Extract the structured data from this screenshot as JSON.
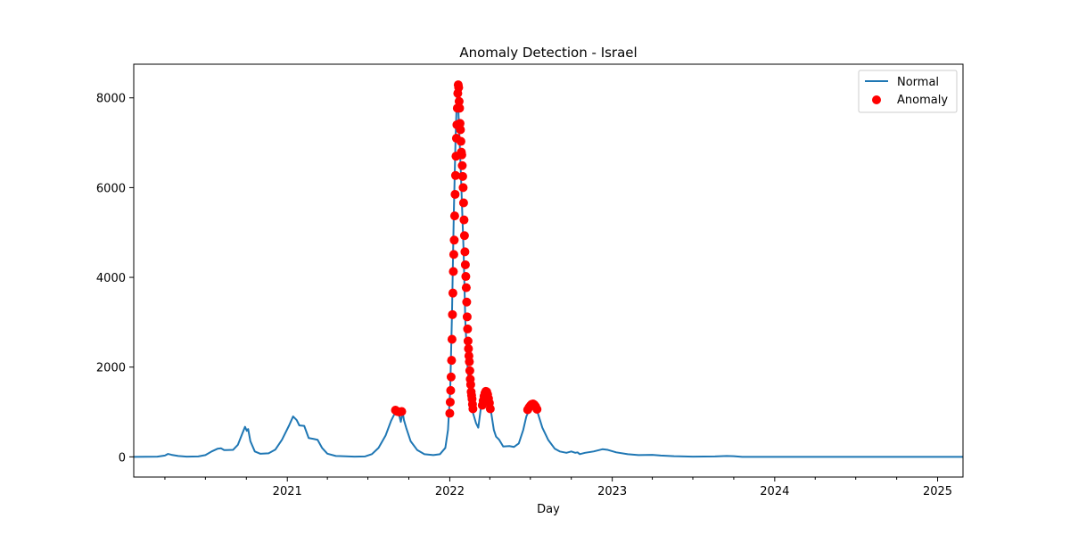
{
  "chart_data": {
    "type": "line",
    "title": "Anomaly Detection - Israel",
    "xlabel": "Day",
    "ylabel": "",
    "xlim": [
      "2020-01-22",
      "2025-02-27"
    ],
    "ylim": [
      -450,
      8750
    ],
    "x_ticks": [
      "2021-01-01",
      "2022-01-01",
      "2023-01-01",
      "2024-01-01",
      "2025-01-01"
    ],
    "x_tick_labels": [
      "2021",
      "2022",
      "2023",
      "2024",
      "2025"
    ],
    "y_ticks": [
      0,
      2000,
      4000,
      6000,
      8000
    ],
    "y_tick_labels": [
      "0",
      "2000",
      "4000",
      "6000",
      "8000"
    ],
    "grid": false,
    "legend": {
      "position": "top-right",
      "entries": [
        "Normal",
        "Anomaly"
      ]
    },
    "colors": {
      "normal": "#1f77b4",
      "anomaly": "#ff0000"
    },
    "series": [
      {
        "name": "Normal",
        "type": "line",
        "points": [
          [
            "2020-01-22",
            0
          ],
          [
            "2020-03-15",
            5
          ],
          [
            "2020-04-01",
            30
          ],
          [
            "2020-04-08",
            65
          ],
          [
            "2020-04-16",
            45
          ],
          [
            "2020-05-01",
            20
          ],
          [
            "2020-05-20",
            5
          ],
          [
            "2020-06-15",
            10
          ],
          [
            "2020-07-01",
            40
          ],
          [
            "2020-07-15",
            120
          ],
          [
            "2020-07-28",
            180
          ],
          [
            "2020-08-05",
            190
          ],
          [
            "2020-08-12",
            150
          ],
          [
            "2020-09-01",
            155
          ],
          [
            "2020-09-12",
            270
          ],
          [
            "2020-09-22",
            520
          ],
          [
            "2020-09-28",
            670
          ],
          [
            "2020-10-02",
            580
          ],
          [
            "2020-10-05",
            620
          ],
          [
            "2020-10-10",
            350
          ],
          [
            "2020-10-20",
            120
          ],
          [
            "2020-11-01",
            70
          ],
          [
            "2020-11-20",
            80
          ],
          [
            "2020-12-05",
            160
          ],
          [
            "2020-12-20",
            380
          ],
          [
            "2021-01-05",
            700
          ],
          [
            "2021-01-14",
            900
          ],
          [
            "2021-01-22",
            820
          ],
          [
            "2021-01-28",
            700
          ],
          [
            "2021-02-08",
            690
          ],
          [
            "2021-02-18",
            420
          ],
          [
            "2021-03-01",
            400
          ],
          [
            "2021-03-10",
            380
          ],
          [
            "2021-03-20",
            200
          ],
          [
            "2021-04-01",
            70
          ],
          [
            "2021-04-20",
            20
          ],
          [
            "2021-06-01",
            5
          ],
          [
            "2021-06-25",
            10
          ],
          [
            "2021-07-10",
            60
          ],
          [
            "2021-07-25",
            200
          ],
          [
            "2021-08-10",
            480
          ],
          [
            "2021-08-22",
            800
          ],
          [
            "2021-09-02",
            1020
          ],
          [
            "2021-09-10",
            900
          ],
          [
            "2021-09-13",
            780
          ],
          [
            "2021-09-17",
            1000
          ],
          [
            "2021-09-20",
            820
          ],
          [
            "2021-09-25",
            650
          ],
          [
            "2021-10-05",
            350
          ],
          [
            "2021-10-20",
            150
          ],
          [
            "2021-11-05",
            60
          ],
          [
            "2021-11-25",
            40
          ],
          [
            "2021-12-10",
            60
          ],
          [
            "2021-12-22",
            200
          ],
          [
            "2021-12-28",
            600
          ],
          [
            "2022-01-02",
            1500
          ],
          [
            "2022-01-06",
            3200
          ],
          [
            "2022-01-10",
            5400
          ],
          [
            "2022-01-14",
            7100
          ],
          [
            "2022-01-18",
            8300
          ],
          [
            "2022-01-22",
            7300
          ],
          [
            "2022-01-26",
            6300
          ],
          [
            "2022-02-01",
            4600
          ],
          [
            "2022-02-05",
            3000
          ],
          [
            "2022-02-10",
            2000
          ],
          [
            "2022-02-15",
            1400
          ],
          [
            "2022-02-20",
            1050
          ],
          [
            "2022-03-01",
            750
          ],
          [
            "2022-03-06",
            650
          ],
          [
            "2022-03-12",
            1100
          ],
          [
            "2022-03-20",
            1450
          ],
          [
            "2022-03-27",
            1350
          ],
          [
            "2022-04-03",
            1050
          ],
          [
            "2022-04-10",
            600
          ],
          [
            "2022-04-15",
            450
          ],
          [
            "2022-04-22",
            380
          ],
          [
            "2022-05-01",
            230
          ],
          [
            "2022-05-15",
            240
          ],
          [
            "2022-05-25",
            220
          ],
          [
            "2022-06-05",
            300
          ],
          [
            "2022-06-15",
            600
          ],
          [
            "2022-06-22",
            900
          ],
          [
            "2022-07-01",
            1100
          ],
          [
            "2022-07-10",
            1170
          ],
          [
            "2022-07-17",
            1000
          ],
          [
            "2022-07-28",
            650
          ],
          [
            "2022-08-10",
            380
          ],
          [
            "2022-08-25",
            180
          ],
          [
            "2022-09-05",
            120
          ],
          [
            "2022-09-20",
            90
          ],
          [
            "2022-10-01",
            120
          ],
          [
            "2022-10-10",
            90
          ],
          [
            "2022-10-15",
            100
          ],
          [
            "2022-10-20",
            60
          ],
          [
            "2022-11-01",
            90
          ],
          [
            "2022-11-20",
            120
          ],
          [
            "2022-12-10",
            170
          ],
          [
            "2022-12-22",
            155
          ],
          [
            "2023-01-10",
            100
          ],
          [
            "2023-02-05",
            60
          ],
          [
            "2023-03-01",
            40
          ],
          [
            "2023-04-01",
            45
          ],
          [
            "2023-04-20",
            30
          ],
          [
            "2023-05-20",
            15
          ],
          [
            "2023-07-01",
            5
          ],
          [
            "2023-08-20",
            10
          ],
          [
            "2023-09-15",
            20
          ],
          [
            "2023-10-01",
            15
          ],
          [
            "2023-10-20",
            0
          ],
          [
            "2024-06-01",
            0
          ],
          [
            "2025-02-27",
            0
          ]
        ]
      },
      {
        "name": "Anomaly",
        "type": "scatter",
        "points": [
          [
            "2021-09-01",
            1040
          ],
          [
            "2021-09-05",
            1010
          ],
          [
            "2021-09-10",
            1000
          ],
          [
            "2021-09-15",
            1010
          ],
          [
            "2022-01-01",
            970
          ],
          [
            "2022-01-02",
            1220
          ],
          [
            "2022-01-03",
            1480
          ],
          [
            "2022-01-04",
            1780
          ],
          [
            "2022-01-05",
            2150
          ],
          [
            "2022-01-06",
            2620
          ],
          [
            "2022-01-07",
            3170
          ],
          [
            "2022-01-08",
            3650
          ],
          [
            "2022-01-09",
            4130
          ],
          [
            "2022-01-10",
            4510
          ],
          [
            "2022-01-11",
            4830
          ],
          [
            "2022-01-12",
            5370
          ],
          [
            "2022-01-13",
            5850
          ],
          [
            "2022-01-14",
            6270
          ],
          [
            "2022-01-15",
            6700
          ],
          [
            "2022-01-16",
            7100
          ],
          [
            "2022-01-17",
            7400
          ],
          [
            "2022-01-18",
            7770
          ],
          [
            "2022-01-19",
            8100
          ],
          [
            "2022-01-20",
            8290
          ],
          [
            "2022-01-21",
            8230
          ],
          [
            "2022-01-22",
            7920
          ],
          [
            "2022-01-23",
            7770
          ],
          [
            "2022-01-24",
            7430
          ],
          [
            "2022-01-25",
            7290
          ],
          [
            "2022-01-26",
            7030
          ],
          [
            "2022-01-27",
            6790
          ],
          [
            "2022-01-28",
            6730
          ],
          [
            "2022-01-29",
            6490
          ],
          [
            "2022-01-30",
            6250
          ],
          [
            "2022-01-31",
            6000
          ],
          [
            "2022-02-01",
            5660
          ],
          [
            "2022-02-02",
            5280
          ],
          [
            "2022-02-03",
            4930
          ],
          [
            "2022-02-04",
            4570
          ],
          [
            "2022-02-05",
            4280
          ],
          [
            "2022-02-06",
            4020
          ],
          [
            "2022-02-07",
            3770
          ],
          [
            "2022-02-08",
            3450
          ],
          [
            "2022-02-09",
            3120
          ],
          [
            "2022-02-10",
            2850
          ],
          [
            "2022-02-11",
            2580
          ],
          [
            "2022-02-12",
            2410
          ],
          [
            "2022-02-13",
            2250
          ],
          [
            "2022-02-14",
            2120
          ],
          [
            "2022-02-15",
            1920
          ],
          [
            "2022-02-16",
            1730
          ],
          [
            "2022-02-17",
            1610
          ],
          [
            "2022-02-18",
            1450
          ],
          [
            "2022-02-19",
            1370
          ],
          [
            "2022-02-20",
            1290
          ],
          [
            "2022-02-21",
            1170
          ],
          [
            "2022-02-22",
            1070
          ],
          [
            "2022-03-15",
            1150
          ],
          [
            "2022-03-17",
            1250
          ],
          [
            "2022-03-19",
            1350
          ],
          [
            "2022-03-21",
            1420
          ],
          [
            "2022-03-23",
            1460
          ],
          [
            "2022-03-25",
            1450
          ],
          [
            "2022-03-27",
            1390
          ],
          [
            "2022-03-29",
            1300
          ],
          [
            "2022-03-31",
            1200
          ],
          [
            "2022-04-02",
            1070
          ],
          [
            "2022-06-25",
            1050
          ],
          [
            "2022-06-28",
            1100
          ],
          [
            "2022-07-01",
            1140
          ],
          [
            "2022-07-04",
            1170
          ],
          [
            "2022-07-07",
            1180
          ],
          [
            "2022-07-10",
            1160
          ],
          [
            "2022-07-13",
            1120
          ],
          [
            "2022-07-16",
            1060
          ]
        ]
      }
    ]
  }
}
